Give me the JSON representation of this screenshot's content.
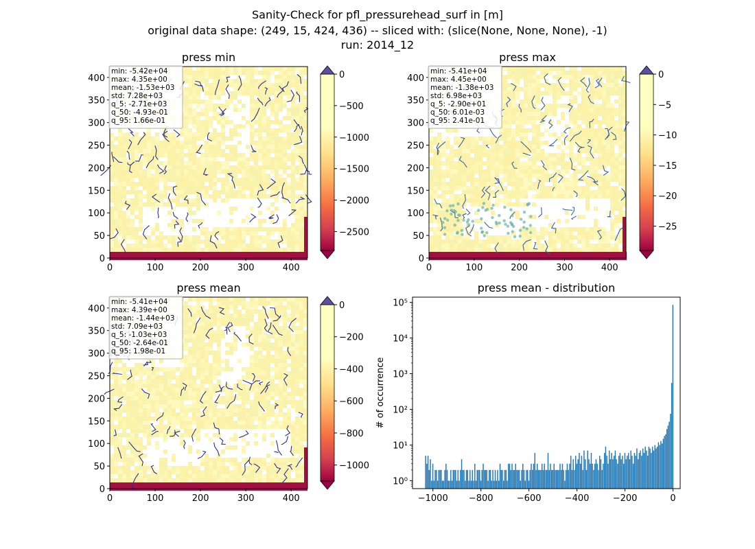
{
  "figure": {
    "title_lines": [
      "Sanity-Check for pfl_pressurehead_surf in [m]",
      "original data shape: (249, 15, 424, 436) -- sliced with: (slice(None, None, None), -1)",
      "run: 2014_12"
    ]
  },
  "chart_data": [
    {
      "type": "heatmap",
      "title": "press min",
      "xlabel": "",
      "ylabel": "",
      "xlim": [
        0,
        436
      ],
      "ylim": [
        0,
        424
      ],
      "xticks": [
        "0",
        "100",
        "200",
        "300",
        "400"
      ],
      "yticks": [
        "0",
        "50",
        "100",
        "150",
        "200",
        "250",
        "300",
        "350",
        "400"
      ],
      "stats": [
        "min: -5.42e+04",
        "max: 4.35e+00",
        "mean: -1.53e+03",
        "std: 7.28e+03",
        "q_5: -2.71e+03",
        "q_50: -4.93e-01",
        "q_95: 1.66e-01"
      ],
      "colorbar": {
        "ticks": [
          "0",
          "−500",
          "−1000",
          "−1500",
          "−2000",
          "−2500"
        ],
        "values": [
          0,
          -500,
          -1000,
          -1500,
          -2000,
          -2500
        ],
        "range": [
          -2800,
          0
        ],
        "cmap": "Spectral",
        "extend": "both"
      }
    },
    {
      "type": "heatmap",
      "title": "press max",
      "xlabel": "",
      "ylabel": "",
      "xlim": [
        0,
        436
      ],
      "ylim": [
        0,
        424
      ],
      "xticks": [
        "0",
        "100",
        "200",
        "300",
        "400"
      ],
      "yticks": [
        "0",
        "50",
        "100",
        "150",
        "200",
        "250",
        "300",
        "350",
        "400"
      ],
      "stats": [
        "min: -5.41e+04",
        "max: 4.45e+00",
        "mean: -1.38e+03",
        "std: 6.98e+03",
        "q_5: -2.90e+01",
        "q_50: 6.01e-03",
        "q_95: 2.41e-01"
      ],
      "colorbar": {
        "ticks": [
          "0",
          "−5",
          "−10",
          "−15",
          "−20",
          "−25"
        ],
        "values": [
          0,
          -5,
          -10,
          -15,
          -20,
          -25
        ],
        "range": [
          -29,
          0
        ],
        "cmap": "Spectral",
        "extend": "both"
      }
    },
    {
      "type": "heatmap",
      "title": "press mean",
      "xlabel": "",
      "ylabel": "",
      "xlim": [
        0,
        436
      ],
      "ylim": [
        0,
        424
      ],
      "xticks": [
        "0",
        "100",
        "200",
        "300",
        "400"
      ],
      "yticks": [
        "0",
        "50",
        "100",
        "150",
        "200",
        "250",
        "300",
        "350",
        "400"
      ],
      "stats": [
        "min: -5.41e+04",
        "max: 4.39e+00",
        "mean: -1.44e+03",
        "std: 7.09e+03",
        "q_5: -1.03e+03",
        "q_50: -2.64e-01",
        "q_95: 1.98e-01"
      ],
      "colorbar": {
        "ticks": [
          "0",
          "−200",
          "−400",
          "−600",
          "−800",
          "−1000"
        ],
        "values": [
          0,
          -200,
          -400,
          -600,
          -800,
          -1000
        ],
        "range": [
          -1100,
          0
        ],
        "cmap": "Spectral",
        "extend": "both"
      }
    },
    {
      "type": "bar",
      "title": "press mean - distribution",
      "xlabel": "",
      "ylabel": "# of occurrence",
      "yscale": "log",
      "xlim": [
        -1085,
        30
      ],
      "ylim": [
        0.6,
        140000
      ],
      "xticks": [
        "−1000",
        "−800",
        "−600",
        "−400",
        "−200",
        "0"
      ],
      "xtick_values": [
        -1000,
        -800,
        -600,
        -400,
        -200,
        0
      ],
      "yticks": [
        "10⁰",
        "10¹",
        "10²",
        "10³",
        "10⁴",
        "10⁵"
      ],
      "ytick_values": [
        1,
        10,
        100,
        1000,
        10000,
        100000
      ],
      "bin_width": 5,
      "bins": [
        [
          -1030,
          5
        ],
        [
          -1025,
          3
        ],
        [
          -1020,
          5
        ],
        [
          -1015,
          2
        ],
        [
          -1010,
          4
        ],
        [
          -1005,
          1
        ],
        [
          -1000,
          3
        ],
        [
          -995,
          1
        ],
        [
          -990,
          2
        ],
        [
          -985,
          2
        ],
        [
          -980,
          1
        ],
        [
          -975,
          2
        ],
        [
          -970,
          2
        ],
        [
          -965,
          2
        ],
        [
          -960,
          1
        ],
        [
          -955,
          1
        ],
        [
          -950,
          2
        ],
        [
          -945,
          3
        ],
        [
          -940,
          2
        ],
        [
          -935,
          1
        ],
        [
          -930,
          1
        ],
        [
          -925,
          2
        ],
        [
          -920,
          1
        ],
        [
          -915,
          2
        ],
        [
          -910,
          2
        ],
        [
          -905,
          2
        ],
        [
          -900,
          1
        ],
        [
          -895,
          2
        ],
        [
          -890,
          1
        ],
        [
          -885,
          2
        ],
        [
          -880,
          4
        ],
        [
          -875,
          2
        ],
        [
          -870,
          2
        ],
        [
          -865,
          1
        ],
        [
          -860,
          2
        ],
        [
          -855,
          2
        ],
        [
          -850,
          1
        ],
        [
          -845,
          2
        ],
        [
          -840,
          1
        ],
        [
          -835,
          2
        ],
        [
          -830,
          1
        ],
        [
          -825,
          3
        ],
        [
          -820,
          1
        ],
        [
          -815,
          2
        ],
        [
          -810,
          2
        ],
        [
          -805,
          2
        ],
        [
          -800,
          1
        ],
        [
          -795,
          2
        ],
        [
          -790,
          3
        ],
        [
          -785,
          2
        ],
        [
          -780,
          2
        ],
        [
          -775,
          2
        ],
        [
          -770,
          1
        ],
        [
          -765,
          2
        ],
        [
          -760,
          2
        ],
        [
          -755,
          1
        ],
        [
          -750,
          2
        ],
        [
          -745,
          1
        ],
        [
          -740,
          2
        ],
        [
          -735,
          1
        ],
        [
          -730,
          2
        ],
        [
          -725,
          1
        ],
        [
          -720,
          3
        ],
        [
          -715,
          2
        ],
        [
          -710,
          2
        ],
        [
          -705,
          1
        ],
        [
          -700,
          2
        ],
        [
          -695,
          2
        ],
        [
          -690,
          1
        ],
        [
          -685,
          3
        ],
        [
          -680,
          3
        ],
        [
          -675,
          2
        ],
        [
          -670,
          3
        ],
        [
          -665,
          2
        ],
        [
          -660,
          2
        ],
        [
          -655,
          3
        ],
        [
          -650,
          2
        ],
        [
          -645,
          2
        ],
        [
          -640,
          2
        ],
        [
          -635,
          1
        ],
        [
          -630,
          2
        ],
        [
          -625,
          3
        ],
        [
          -620,
          2
        ],
        [
          -615,
          1
        ],
        [
          -610,
          2
        ],
        [
          -605,
          2
        ],
        [
          -600,
          1
        ],
        [
          -595,
          2
        ],
        [
          -590,
          3
        ],
        [
          -585,
          2
        ],
        [
          -580,
          3
        ],
        [
          -575,
          6
        ],
        [
          -570,
          2
        ],
        [
          -565,
          3
        ],
        [
          -560,
          2
        ],
        [
          -555,
          2
        ],
        [
          -550,
          2
        ],
        [
          -545,
          3
        ],
        [
          -540,
          2
        ],
        [
          -535,
          3
        ],
        [
          -530,
          2
        ],
        [
          -525,
          2
        ],
        [
          -520,
          6
        ],
        [
          -515,
          2
        ],
        [
          -510,
          3
        ],
        [
          -505,
          2
        ],
        [
          -500,
          2
        ],
        [
          -495,
          3
        ],
        [
          -490,
          2
        ],
        [
          -485,
          2
        ],
        [
          -480,
          2
        ],
        [
          -475,
          2
        ],
        [
          -470,
          3
        ],
        [
          -465,
          2
        ],
        [
          -460,
          3
        ],
        [
          -455,
          2
        ],
        [
          -450,
          1
        ],
        [
          -445,
          2
        ],
        [
          -440,
          3
        ],
        [
          -435,
          2
        ],
        [
          -430,
          3
        ],
        [
          -425,
          5
        ],
        [
          -420,
          2
        ],
        [
          -415,
          4
        ],
        [
          -410,
          2
        ],
        [
          -405,
          5
        ],
        [
          -400,
          3
        ],
        [
          -395,
          4
        ],
        [
          -390,
          6
        ],
        [
          -385,
          3
        ],
        [
          -380,
          5
        ],
        [
          -375,
          2
        ],
        [
          -370,
          7
        ],
        [
          -365,
          4
        ],
        [
          -360,
          2
        ],
        [
          -355,
          7
        ],
        [
          -350,
          4
        ],
        [
          -345,
          3
        ],
        [
          -340,
          6
        ],
        [
          -335,
          3
        ],
        [
          -330,
          2
        ],
        [
          -325,
          3
        ],
        [
          -320,
          4
        ],
        [
          -315,
          3
        ],
        [
          -310,
          2
        ],
        [
          -305,
          5
        ],
        [
          -300,
          4
        ],
        [
          -295,
          2
        ],
        [
          -290,
          3
        ],
        [
          -285,
          6
        ],
        [
          -280,
          9
        ],
        [
          -275,
          5
        ],
        [
          -270,
          3
        ],
        [
          -265,
          7
        ],
        [
          -260,
          4
        ],
        [
          -255,
          6
        ],
        [
          -250,
          4
        ],
        [
          -245,
          5
        ],
        [
          -240,
          7
        ],
        [
          -235,
          4
        ],
        [
          -230,
          3
        ],
        [
          -225,
          5
        ],
        [
          -220,
          6
        ],
        [
          -215,
          4
        ],
        [
          -210,
          5
        ],
        [
          -205,
          3
        ],
        [
          -200,
          6
        ],
        [
          -195,
          4
        ],
        [
          -190,
          5
        ],
        [
          -185,
          6
        ],
        [
          -180,
          4
        ],
        [
          -175,
          7
        ],
        [
          -170,
          5
        ],
        [
          -165,
          3
        ],
        [
          -160,
          6
        ],
        [
          -155,
          5
        ],
        [
          -150,
          8
        ],
        [
          -145,
          4
        ],
        [
          -140,
          6
        ],
        [
          -135,
          7
        ],
        [
          -130,
          5
        ],
        [
          -125,
          8
        ],
        [
          -120,
          6
        ],
        [
          -115,
          9
        ],
        [
          -110,
          7
        ],
        [
          -105,
          5
        ],
        [
          -100,
          9
        ],
        [
          -95,
          8
        ],
        [
          -90,
          6
        ],
        [
          -85,
          9
        ],
        [
          -80,
          7
        ],
        [
          -75,
          10
        ],
        [
          -70,
          8
        ],
        [
          -65,
          9
        ],
        [
          -60,
          12
        ],
        [
          -55,
          10
        ],
        [
          -50,
          13
        ],
        [
          -45,
          11
        ],
        [
          -40,
          15
        ],
        [
          -35,
          18
        ],
        [
          -30,
          20
        ],
        [
          -25,
          28
        ],
        [
          -20,
          35
        ],
        [
          -15,
          45
        ],
        [
          -10,
          75
        ],
        [
          -5,
          550
        ],
        [
          0,
          85000
        ]
      ]
    }
  ]
}
